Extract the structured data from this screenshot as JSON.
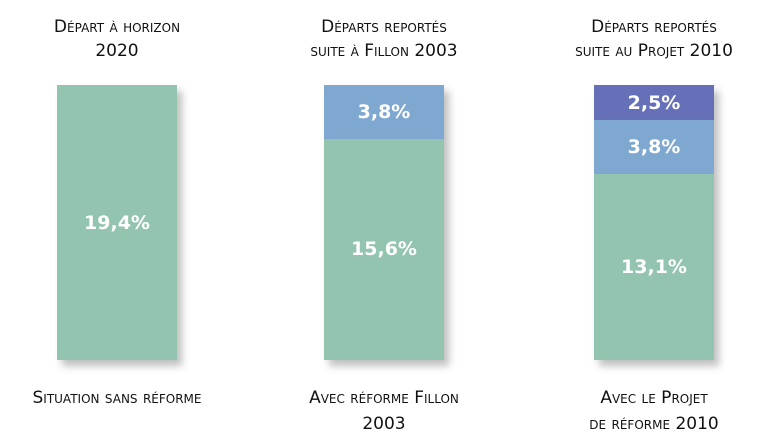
{
  "chart_data": {
    "type": "stacked_bar",
    "column_titles": [
      [
        "Départ à horizon",
        "2020"
      ],
      [
        "Départs reportés",
        "suite à Fillon 2003"
      ],
      [
        "Départs reportés",
        "suite au Projet 2010"
      ]
    ],
    "categories": [
      [
        "Situation sans réforme"
      ],
      [
        "Avec réforme Fillon",
        "2003"
      ],
      [
        "Avec le Projet",
        "de réforme 2010"
      ]
    ],
    "series": [
      {
        "color": "#93c4b0",
        "values": [
          19.4,
          15.6,
          13.1
        ],
        "value_labels": [
          "19,4%",
          "15,6%",
          "13,1%"
        ]
      },
      {
        "color": "#7fa8d1",
        "values": [
          null,
          3.8,
          3.8
        ],
        "value_labels": [
          null,
          "3,8%",
          "3,8%"
        ]
      },
      {
        "color": "#6570b9",
        "values": [
          null,
          null,
          2.5
        ],
        "value_labels": [
          null,
          null,
          "2,5%"
        ]
      }
    ]
  }
}
